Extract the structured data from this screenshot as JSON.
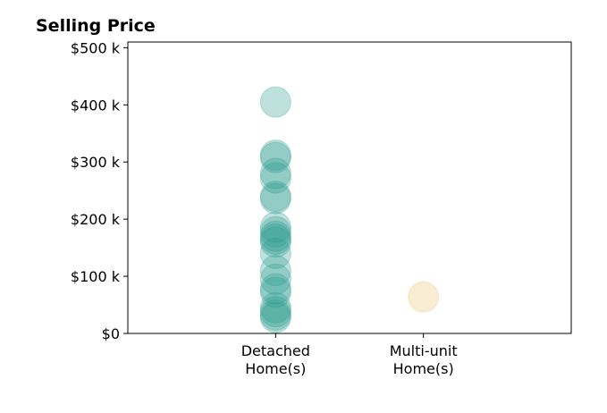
{
  "chart_data": {
    "type": "scatter",
    "title": "Selling Price",
    "xlabel": "",
    "ylabel": "",
    "ylim": [
      0,
      510000
    ],
    "xlim": [
      0,
      3
    ],
    "yticks": [
      {
        "value": 0,
        "label": "$0"
      },
      {
        "value": 100000,
        "label": "$100 k"
      },
      {
        "value": 200000,
        "label": "$200 k"
      },
      {
        "value": 300000,
        "label": "$300 k"
      },
      {
        "value": 400000,
        "label": "$400 k"
      },
      {
        "value": 500000,
        "label": "$500 k"
      }
    ],
    "categories": [
      {
        "value": 1,
        "label_lines": [
          "Detached",
          "Home(s)"
        ]
      },
      {
        "value": 2,
        "label_lines": [
          "Multi-unit",
          "Home(s)"
        ]
      }
    ],
    "grid": false,
    "legend": "none",
    "series": [
      {
        "x": 1,
        "color": "#2a9d8f",
        "opacity": 0.3,
        "values": [
          405000,
          312000,
          308000,
          280000,
          272000,
          240000,
          236000,
          186000,
          178000,
          170000,
          165000,
          160000,
          140000,
          110000,
          95000,
          78000,
          72000,
          45000,
          38000,
          32000,
          28000
        ]
      },
      {
        "x": 2,
        "color": "#e9c46a",
        "opacity": 0.3,
        "values": [
          64000
        ]
      }
    ]
  }
}
